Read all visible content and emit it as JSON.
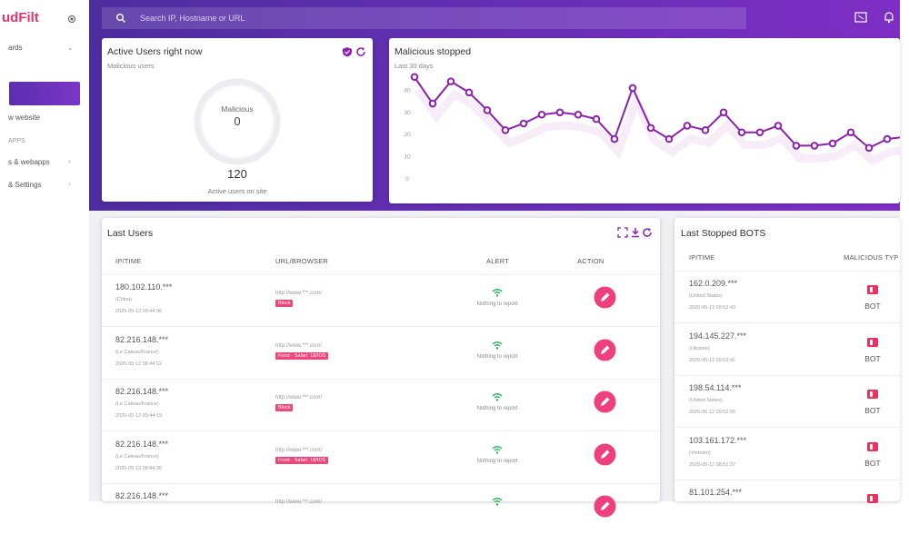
{
  "sidebar": {
    "logo": "udFilt",
    "items": [
      "ards",
      "w website",
      "APPS",
      "s & webapps",
      "& Settings"
    ]
  },
  "header": {
    "search_placeholder": "Search IP, Hostname or URL"
  },
  "active_users": {
    "title": "Active Users right now",
    "subtitle": "Malicious users",
    "gauge_label": "Malicious",
    "gauge_value": 0,
    "total": 120,
    "total_label": "Active users on site"
  },
  "chart_data": {
    "type": "line",
    "title": "Malicious stopped",
    "subtitle": "Last 30 days",
    "values": [
      46,
      34,
      44,
      39,
      31,
      22,
      25,
      29,
      30,
      29,
      27,
      18,
      41,
      23,
      18,
      24,
      22,
      30,
      21,
      21,
      24,
      15,
      15,
      16,
      21,
      14,
      18,
      19
    ],
    "color": "#8e1fb0",
    "ylim": [
      0,
      50
    ],
    "yticks": [
      0,
      10,
      20,
      30,
      40
    ]
  },
  "last_users": {
    "title": "Last Users",
    "columns": [
      "IP/TIME",
      "URL/BROWSER",
      "ALERT",
      "ACTION"
    ],
    "rows": [
      {
        "ip": "180.102.110.***",
        "location": "(China)",
        "time": "2025-05-12 09:44:36",
        "url": "http://www.***.com/",
        "tag": "Block",
        "alert": "Nothing to report"
      },
      {
        "ip": "82.216.148.***",
        "location": "(Le Cateau/France)",
        "time": "2025-05-12 08:44:52",
        "url": "http://www.***.com/",
        "tag": "Front - Safari: 18/IOS",
        "alert": "Nothing to report"
      },
      {
        "ip": "82.216.148.***",
        "location": "(Le Cateau/France)",
        "time": "2025-05-12 09:44:19",
        "url": "http://www.***.com/",
        "tag": "Block",
        "alert": "Nothing to report"
      },
      {
        "ip": "82.216.148.***",
        "location": "(Le Cateau/France)",
        "time": "2025-05-12 08:44:36",
        "url": "http://www.***.com/",
        "tag": "Front - Safari: 18/IOS",
        "alert": "Nothing to report"
      },
      {
        "ip": "82.216.148.***",
        "url": "http://www.***.com/"
      }
    ]
  },
  "last_bots": {
    "title": "Last Stopped BOTS",
    "columns": [
      "IP/TIME",
      "MALICIOUS TYP"
    ],
    "rows": [
      {
        "ip": "162.0.209.***",
        "location": "(United States)",
        "time": "2025-05-12 09:52:43",
        "type": "BOT"
      },
      {
        "ip": "194.145.227.***",
        "location": "(Ukraine)",
        "time": "2025-05-12 09:52:41",
        "type": "BOT"
      },
      {
        "ip": "198.54.114.***",
        "location": "(United States)",
        "time": "2025-05-12 09:52:06",
        "type": "BOT"
      },
      {
        "ip": "103.161.172.***",
        "location": "(Vietnam)",
        "time": "2025-05-12 08:51:37",
        "type": "BOT"
      },
      {
        "ip": "81.101.254.***"
      }
    ]
  }
}
